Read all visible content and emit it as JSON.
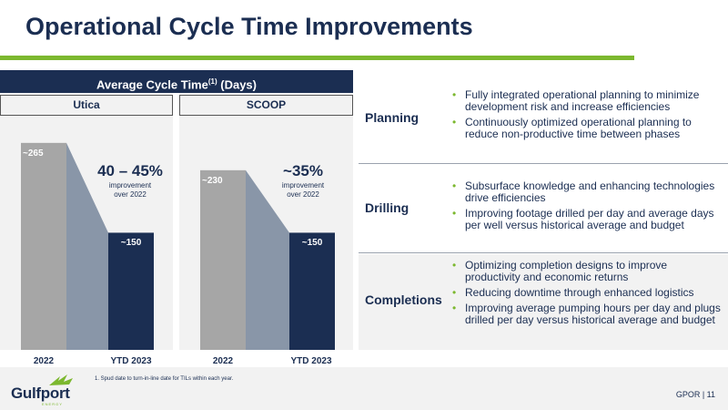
{
  "title": "Operational Cycle Time Improvements",
  "chart": {
    "header_main": "Average Cycle Time",
    "header_sup": "(1)",
    "header_tail": " (Days)"
  },
  "chart_data": [
    {
      "type": "bar",
      "title": "Utica",
      "categories": [
        "2022",
        "YTD 2023"
      ],
      "values": [
        265,
        150
      ],
      "value_labels": [
        "~265",
        "~150"
      ],
      "annotation": "40 – 45%",
      "annotation_sub_1": "improvement",
      "annotation_sub_2": "over 2022",
      "ylim": [
        0,
        280
      ]
    },
    {
      "type": "bar",
      "title": "SCOOP",
      "categories": [
        "2022",
        "YTD 2023"
      ],
      "values": [
        230,
        150
      ],
      "value_labels": [
        "~230",
        "~150"
      ],
      "annotation": "~35%",
      "annotation_sub_1": "improvement",
      "annotation_sub_2": "over 2022",
      "ylim": [
        0,
        280
      ]
    }
  ],
  "colors": {
    "navy": "#1b2e52",
    "bar_2022": "#a6a6a6",
    "connector": "#8996a8",
    "accent_green": "#7cb82f",
    "panel_bg": "#f2f2f2"
  },
  "rows": [
    {
      "label": "Planning",
      "bullets": [
        "Fully integrated operational planning to minimize development risk and increase efficiencies",
        "Continuously optimized operational planning to reduce non-productive time between phases"
      ]
    },
    {
      "label": "Drilling",
      "bullets": [
        "Subsurface knowledge and enhancing technologies drive efficiencies",
        "Improving footage drilled per day and average days per well versus historical average and budget"
      ]
    },
    {
      "label": "Completions",
      "bullets": [
        "Optimizing completion designs to improve productivity and economic returns",
        "Reducing downtime through enhanced logistics",
        "Improving average pumping hours per day and plugs drilled per day versus historical average and budget"
      ]
    }
  ],
  "footnote": "1.    Spud date to turn-in-line date for TILs within each year.",
  "logo": {
    "text": "Gulfport",
    "sub": "ENERGY"
  },
  "page_number": "GPOR | 11"
}
